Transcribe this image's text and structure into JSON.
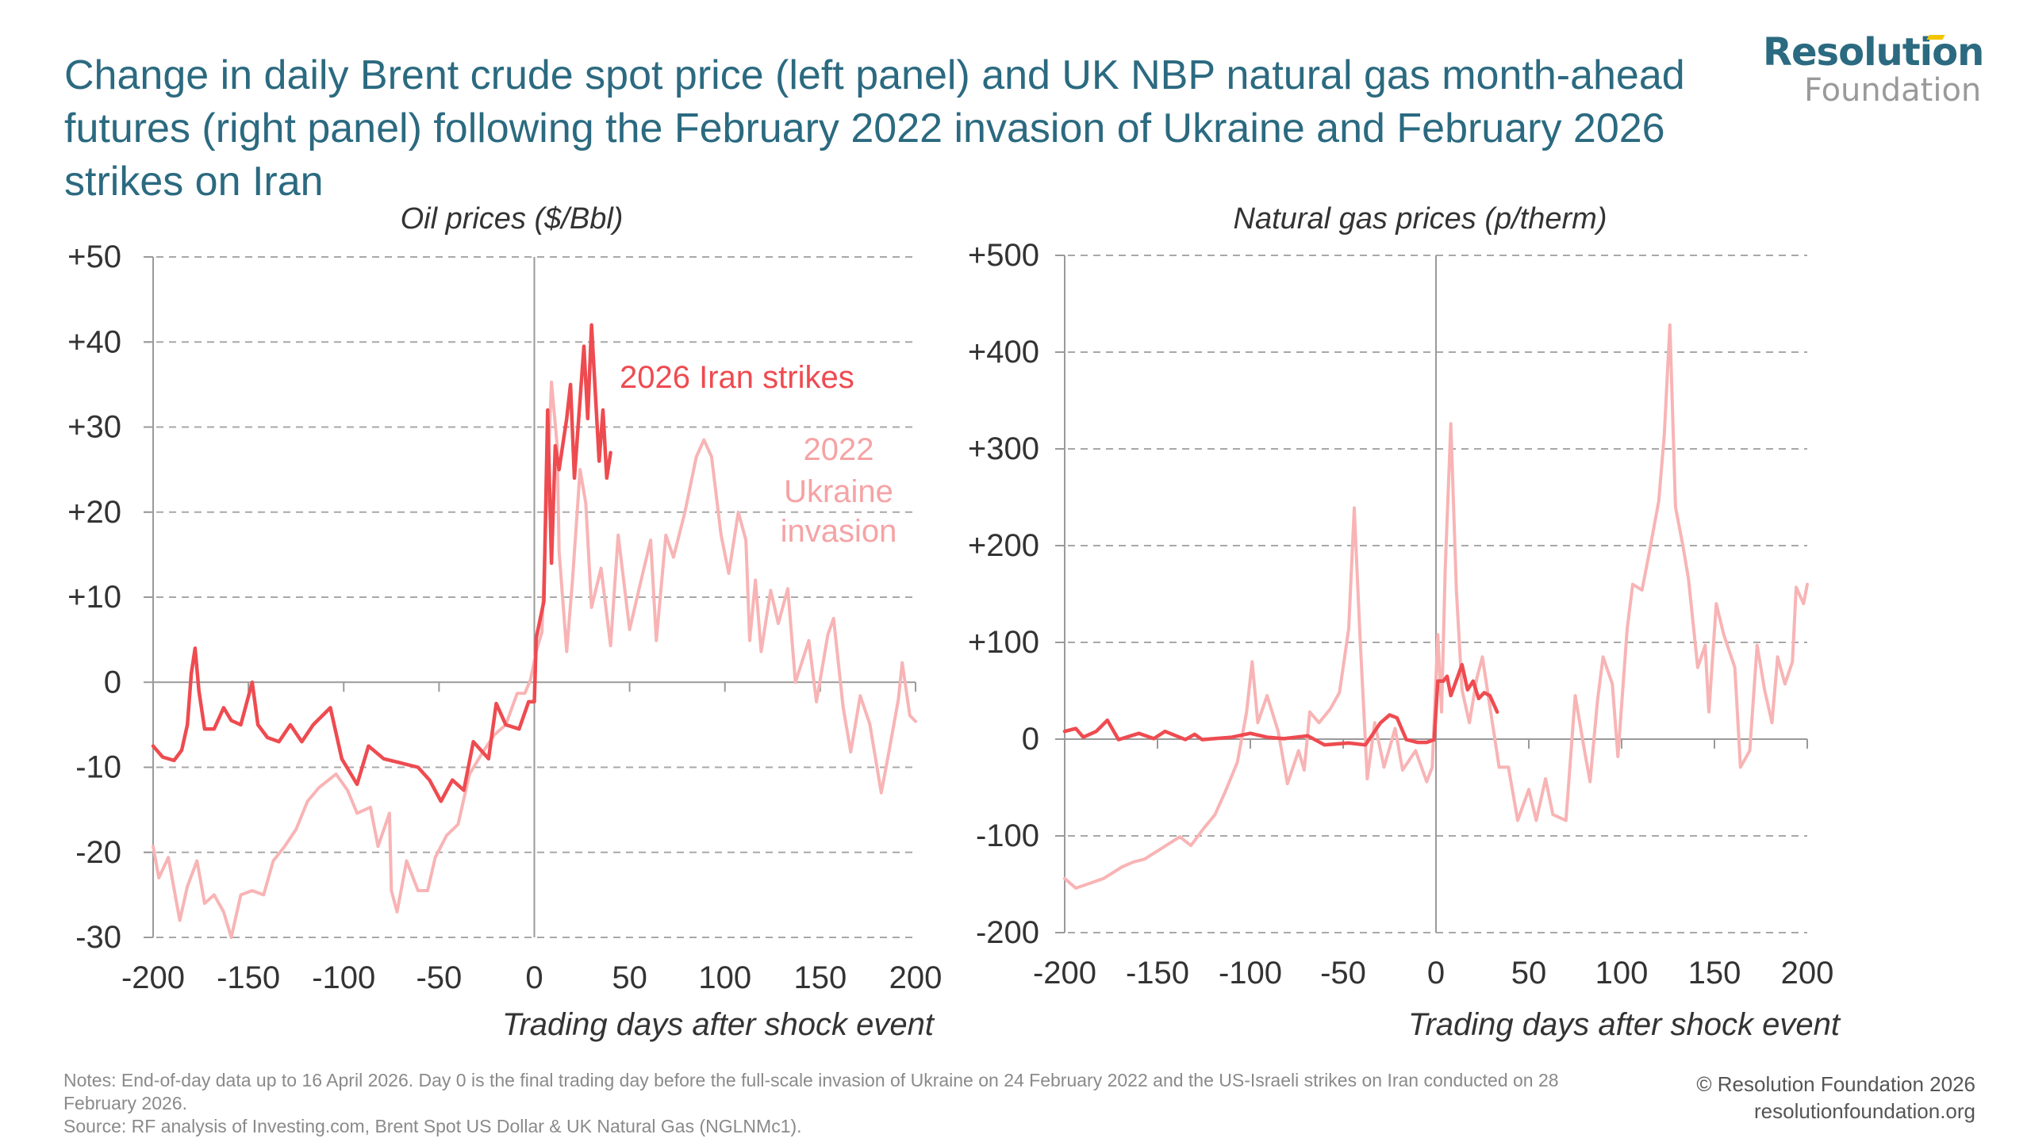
{
  "header": {
    "title": "Change in daily Brent crude spot price (left panel) and UK NBP natural gas month-ahead futures (right panel) following the February 2022 invasion of Ukraine and February 2026 strikes on Iran",
    "logo_top": "Resolution",
    "logo_bottom": "Foundation"
  },
  "colors": {
    "title": "#2B6A80",
    "series_2026": "#EE4B50",
    "series_2022": "#F8B4B5",
    "label_2022": "#F5A3A5",
    "logo_accent": "#F2C500",
    "logo_gray": "#9A9A9A"
  },
  "footer": {
    "notes_line1": "Notes: End-of-day data up to 16 April 2026. Day 0 is the final trading day before the full-scale invasion of Ukraine on 24 February 2022 and the US-Israeli strikes on Iran conducted on 28 February 2026.",
    "source": "Source: RF analysis of Investing.com, Brent Spot US Dollar & UK Natural Gas (NGLNMc1).",
    "copyright": "© Resolution Foundation 2026",
    "website": "resolutionfoundation.org"
  },
  "chart_data": [
    {
      "type": "line",
      "title": "Oil prices ($/Bbl)",
      "xlabel": "Trading days after shock event",
      "ylabel": "",
      "xlim": [
        -200,
        200
      ],
      "ylim": [
        -30,
        50
      ],
      "xticks": [
        -200,
        -150,
        -100,
        -50,
        0,
        50,
        100,
        150,
        200
      ],
      "xtick_labels": [
        "-200",
        "-150",
        "-100",
        "-50",
        "0",
        "50",
        "100",
        "150",
        "200"
      ],
      "yticks": [
        50,
        40,
        30,
        20,
        10,
        0,
        -10,
        -20,
        -30
      ],
      "ytick_labels": [
        "+50",
        "+40",
        "+30",
        "+20",
        "+10",
        "0",
        "-10",
        "-20",
        "-30"
      ],
      "grid": true,
      "series": [
        {
          "name": "2022 Ukraine invasion",
          "label_lines": [
            "2022",
            "Ukraine",
            "invasion"
          ],
          "x": [
            -200,
            -197,
            -192,
            -186,
            -182,
            -177,
            -173,
            -168,
            -163,
            -159,
            -154,
            -148,
            -142,
            -137,
            -131,
            -125,
            -119,
            -113,
            -104,
            -98,
            -93,
            -86,
            -82,
            -76,
            -75,
            -72,
            -67,
            -61,
            -56,
            -52,
            -46,
            -40,
            -34,
            -27,
            -21,
            -15,
            -9,
            -5,
            -2,
            1,
            4,
            6,
            9,
            12,
            13,
            17,
            20,
            24,
            27,
            30,
            35,
            40,
            44,
            50,
            55,
            61,
            64,
            69,
            73,
            79,
            85,
            89,
            93,
            98,
            102,
            107,
            111,
            113,
            116,
            119,
            124,
            128,
            133,
            137,
            144,
            148,
            154,
            157,
            162,
            166,
            171,
            176,
            182,
            186,
            191,
            193,
            197,
            200
          ],
          "y": [
            -19.3,
            -23,
            -20.6,
            -28,
            -24,
            -21,
            -26,
            -25,
            -27,
            -30,
            -25,
            -24.5,
            -25,
            -21,
            -19.3,
            -17.3,
            -14,
            -12.4,
            -10.8,
            -12.7,
            -15.4,
            -14.7,
            -19.3,
            -15.4,
            -24.5,
            -27,
            -21,
            -24.5,
            -24.5,
            -20.6,
            -18,
            -16.7,
            -10.8,
            -8.2,
            -6.2,
            -5,
            -1.3,
            -1.3,
            0.3,
            3.6,
            5.9,
            18.6,
            35.3,
            27.8,
            15.4,
            3.6,
            12,
            25,
            21,
            8.8,
            13.4,
            4.3,
            17.3,
            6.2,
            11,
            16.7,
            4.9,
            17.3,
            14.7,
            20,
            26.5,
            28.5,
            26.5,
            17.3,
            12.8,
            20,
            16.7,
            4.9,
            12,
            3.6,
            10.8,
            6.9,
            11,
            0,
            4.9,
            -2.3,
            5.6,
            7.5,
            -2.9,
            -8.2,
            -1.6,
            -4.9,
            -13,
            -8.2,
            -2,
            2.3,
            -3.9,
            -4.6
          ]
        },
        {
          "name": "2026 Iran strikes",
          "label_lines": [
            "2026 Iran strikes"
          ],
          "x": [
            -200,
            -195,
            -189,
            -185,
            -182,
            -180,
            -178,
            -176,
            -173,
            -168,
            -163,
            -159,
            -154,
            -148,
            -145,
            -140,
            -134,
            -128,
            -122,
            -116,
            -107,
            -101,
            -93,
            -87,
            -79,
            -70,
            -61,
            -55,
            -49,
            -43,
            -37,
            -32,
            -24,
            -20,
            -15,
            -8,
            -3,
            0,
            1,
            5,
            7,
            9,
            11,
            13,
            17,
            19,
            21,
            26,
            28,
            30,
            34,
            36,
            38,
            40
          ],
          "y": [
            -7.5,
            -8.8,
            -9.2,
            -8,
            -5,
            1,
            4,
            -1,
            -5.5,
            -5.5,
            -3,
            -4.5,
            -5,
            0,
            -5,
            -6.5,
            -7,
            -5,
            -7,
            -5,
            -3,
            -9,
            -12,
            -7.5,
            -9,
            -9.5,
            -10,
            -11.5,
            -14,
            -11.5,
            -12.7,
            -7,
            -9,
            -2.5,
            -5,
            -5.5,
            -2.3,
            -2.3,
            5.2,
            9.5,
            32,
            14,
            27.8,
            25,
            31,
            35,
            24,
            39.5,
            31,
            42,
            26,
            32,
            24,
            27
          ]
        }
      ]
    },
    {
      "type": "line",
      "title": "Natural gas prices (p/therm)",
      "xlabel": "Trading days after shock event",
      "ylabel": "",
      "xlim": [
        -200,
        200
      ],
      "ylim": [
        -200,
        500
      ],
      "xticks": [
        -200,
        -150,
        -100,
        -50,
        0,
        50,
        100,
        150,
        200
      ],
      "xtick_labels": [
        "-200",
        "-150",
        "-100",
        "-50",
        "0",
        "50",
        "100",
        "150",
        "200"
      ],
      "yticks": [
        500,
        400,
        300,
        200,
        100,
        0,
        -100,
        -200
      ],
      "ytick_labels": [
        "+500",
        "+400",
        "+300",
        "+200",
        "+100",
        "0",
        "-100",
        "-200"
      ],
      "grid": true,
      "series": [
        {
          "name": "2022 Ukraine invasion",
          "x": [
            -200,
            -194,
            -188,
            -179,
            -169,
            -163,
            -157,
            -147,
            -138,
            -132,
            -125,
            -119,
            -113,
            -107,
            -102,
            -99,
            -96,
            -91,
            -85,
            -80,
            -74,
            -71,
            -68,
            -63,
            -57,
            -52,
            -47,
            -44,
            -41,
            -37,
            -33,
            -28,
            -22,
            -18,
            -11,
            -5,
            -2,
            1,
            3,
            5,
            8,
            11,
            14,
            18,
            22,
            25,
            29,
            34,
            39,
            44,
            50,
            54,
            59,
            63,
            70,
            75,
            80,
            83,
            87,
            90,
            95,
            98,
            103,
            106,
            111,
            115,
            120,
            123,
            126,
            129,
            133,
            136,
            141,
            145,
            147,
            151,
            155,
            161,
            164,
            169,
            173,
            177,
            181,
            184,
            188,
            192,
            194,
            198,
            200
          ],
          "y": [
            -144,
            -154,
            -150,
            -144,
            -132,
            -127,
            -124,
            -112,
            -101,
            -110,
            -92,
            -78,
            -52,
            -24,
            28,
            80,
            17,
            45,
            8,
            -46,
            -12,
            -32,
            28,
            17,
            31,
            48,
            114,
            239,
            108,
            -41,
            17,
            -29,
            11,
            -32,
            -12,
            -44,
            -29,
            108,
            28,
            177,
            326,
            154,
            51,
            17,
            63,
            85,
            34,
            -29,
            -29,
            -84,
            -52,
            -84,
            -41,
            -78,
            -84,
            45,
            -12,
            -44,
            40,
            85,
            57,
            -18,
            114,
            160,
            154,
            194,
            246,
            315,
            428,
            240,
            200,
            166,
            74,
            97,
            28,
            140,
            108,
            74,
            -29,
            -12,
            97,
            51,
            17,
            85,
            57,
            80,
            157,
            140,
            160
          ]
        },
        {
          "name": "2026 Iran strikes",
          "x": [
            -200,
            -194,
            -190,
            -183,
            -177,
            -171,
            -160,
            -152,
            -146,
            -135,
            -130,
            -126,
            -110,
            -100,
            -91,
            -82,
            -69,
            -60,
            -47,
            -38,
            -30,
            -25,
            -21,
            -16,
            -10,
            -5,
            -1,
            1,
            4,
            6,
            8,
            14,
            17,
            20,
            23,
            26,
            29,
            33
          ],
          "y": [
            8,
            11,
            2,
            8,
            19.5,
            -0.5,
            6,
            0.5,
            8,
            -0.5,
            5,
            -0.5,
            2,
            6,
            2,
            0.5,
            3.4,
            -6,
            -4,
            -6,
            16.6,
            25,
            22,
            -0.5,
            -3.4,
            -3.4,
            -0.5,
            60,
            60,
            65,
            45,
            77,
            51,
            60,
            42,
            48,
            45,
            28
          ]
        }
      ]
    }
  ]
}
